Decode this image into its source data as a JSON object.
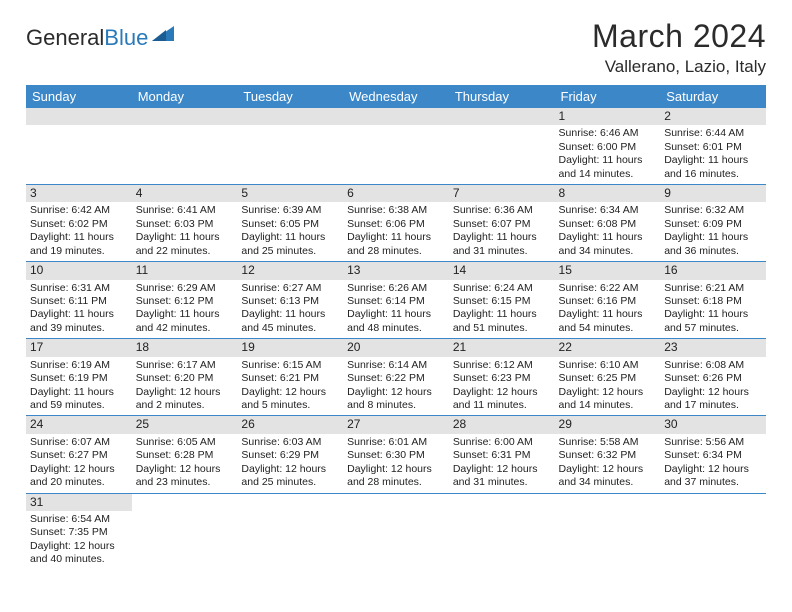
{
  "brand": {
    "part1": "General",
    "part2": "Blue"
  },
  "title": {
    "month": "March 2024",
    "location": "Vallerano, Lazio, Italy"
  },
  "colors": {
    "header_bg": "#3b87c8",
    "header_fg": "#ffffff",
    "daynum_bg": "#e3e3e3",
    "rule": "#3b87c8",
    "logo_blue": "#2a7ab9"
  },
  "weekdays": [
    "Sunday",
    "Monday",
    "Tuesday",
    "Wednesday",
    "Thursday",
    "Friday",
    "Saturday"
  ],
  "weeks": [
    [
      null,
      null,
      null,
      null,
      null,
      {
        "n": "1",
        "sr": "6:46 AM",
        "ss": "6:00 PM",
        "dl": "11 hours and 14 minutes."
      },
      {
        "n": "2",
        "sr": "6:44 AM",
        "ss": "6:01 PM",
        "dl": "11 hours and 16 minutes."
      }
    ],
    [
      {
        "n": "3",
        "sr": "6:42 AM",
        "ss": "6:02 PM",
        "dl": "11 hours and 19 minutes."
      },
      {
        "n": "4",
        "sr": "6:41 AM",
        "ss": "6:03 PM",
        "dl": "11 hours and 22 minutes."
      },
      {
        "n": "5",
        "sr": "6:39 AM",
        "ss": "6:05 PM",
        "dl": "11 hours and 25 minutes."
      },
      {
        "n": "6",
        "sr": "6:38 AM",
        "ss": "6:06 PM",
        "dl": "11 hours and 28 minutes."
      },
      {
        "n": "7",
        "sr": "6:36 AM",
        "ss": "6:07 PM",
        "dl": "11 hours and 31 minutes."
      },
      {
        "n": "8",
        "sr": "6:34 AM",
        "ss": "6:08 PM",
        "dl": "11 hours and 34 minutes."
      },
      {
        "n": "9",
        "sr": "6:32 AM",
        "ss": "6:09 PM",
        "dl": "11 hours and 36 minutes."
      }
    ],
    [
      {
        "n": "10",
        "sr": "6:31 AM",
        "ss": "6:11 PM",
        "dl": "11 hours and 39 minutes."
      },
      {
        "n": "11",
        "sr": "6:29 AM",
        "ss": "6:12 PM",
        "dl": "11 hours and 42 minutes."
      },
      {
        "n": "12",
        "sr": "6:27 AM",
        "ss": "6:13 PM",
        "dl": "11 hours and 45 minutes."
      },
      {
        "n": "13",
        "sr": "6:26 AM",
        "ss": "6:14 PM",
        "dl": "11 hours and 48 minutes."
      },
      {
        "n": "14",
        "sr": "6:24 AM",
        "ss": "6:15 PM",
        "dl": "11 hours and 51 minutes."
      },
      {
        "n": "15",
        "sr": "6:22 AM",
        "ss": "6:16 PM",
        "dl": "11 hours and 54 minutes."
      },
      {
        "n": "16",
        "sr": "6:21 AM",
        "ss": "6:18 PM",
        "dl": "11 hours and 57 minutes."
      }
    ],
    [
      {
        "n": "17",
        "sr": "6:19 AM",
        "ss": "6:19 PM",
        "dl": "11 hours and 59 minutes."
      },
      {
        "n": "18",
        "sr": "6:17 AM",
        "ss": "6:20 PM",
        "dl": "12 hours and 2 minutes."
      },
      {
        "n": "19",
        "sr": "6:15 AM",
        "ss": "6:21 PM",
        "dl": "12 hours and 5 minutes."
      },
      {
        "n": "20",
        "sr": "6:14 AM",
        "ss": "6:22 PM",
        "dl": "12 hours and 8 minutes."
      },
      {
        "n": "21",
        "sr": "6:12 AM",
        "ss": "6:23 PM",
        "dl": "12 hours and 11 minutes."
      },
      {
        "n": "22",
        "sr": "6:10 AM",
        "ss": "6:25 PM",
        "dl": "12 hours and 14 minutes."
      },
      {
        "n": "23",
        "sr": "6:08 AM",
        "ss": "6:26 PM",
        "dl": "12 hours and 17 minutes."
      }
    ],
    [
      {
        "n": "24",
        "sr": "6:07 AM",
        "ss": "6:27 PM",
        "dl": "12 hours and 20 minutes."
      },
      {
        "n": "25",
        "sr": "6:05 AM",
        "ss": "6:28 PM",
        "dl": "12 hours and 23 minutes."
      },
      {
        "n": "26",
        "sr": "6:03 AM",
        "ss": "6:29 PM",
        "dl": "12 hours and 25 minutes."
      },
      {
        "n": "27",
        "sr": "6:01 AM",
        "ss": "6:30 PM",
        "dl": "12 hours and 28 minutes."
      },
      {
        "n": "28",
        "sr": "6:00 AM",
        "ss": "6:31 PM",
        "dl": "12 hours and 31 minutes."
      },
      {
        "n": "29",
        "sr": "5:58 AM",
        "ss": "6:32 PM",
        "dl": "12 hours and 34 minutes."
      },
      {
        "n": "30",
        "sr": "5:56 AM",
        "ss": "6:34 PM",
        "dl": "12 hours and 37 minutes."
      }
    ],
    [
      {
        "n": "31",
        "sr": "6:54 AM",
        "ss": "7:35 PM",
        "dl": "12 hours and 40 minutes."
      },
      null,
      null,
      null,
      null,
      null,
      null
    ]
  ],
  "labels": {
    "sunrise": "Sunrise:",
    "sunset": "Sunset:",
    "daylight": "Daylight:"
  }
}
